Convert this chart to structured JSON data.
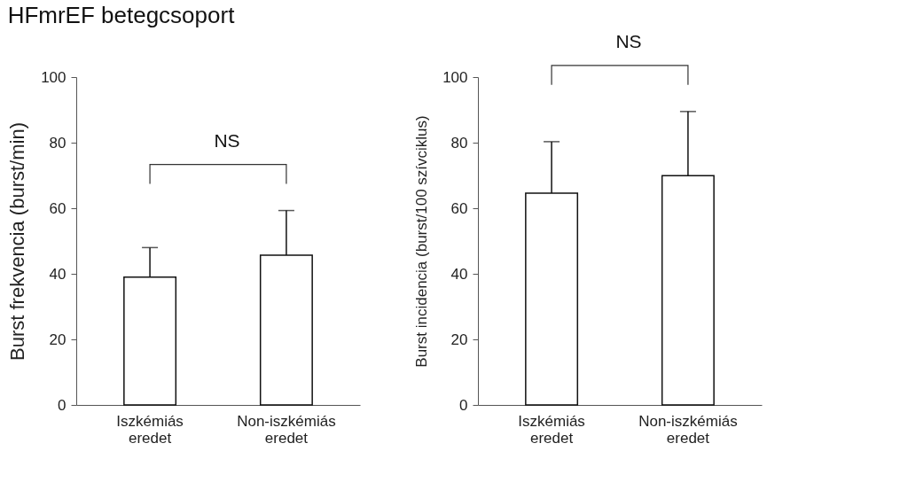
{
  "chart_data": [
    {
      "type": "bar",
      "title": "HFmrEF betegcsoport",
      "categories": [
        "Iszkémiás eredet",
        "Non-iszkémiás eredet"
      ],
      "ylabel": "Burst frekvencia (burst/min)",
      "ylim": [
        0,
        100
      ],
      "yticks": [
        0,
        20,
        40,
        60,
        80,
        100
      ],
      "grid": false,
      "annotations": [
        "NS"
      ],
      "series": [
        {
          "color": "#ffffff",
          "values": [
            39,
            45.7
          ],
          "errors": [
            [
              39,
              48
            ],
            [
              45.7,
              59.3
            ]
          ]
        }
      ]
    },
    {
      "type": "bar",
      "categories": [
        "Iszkémiás eredet",
        "Non-iszkémiás eredet"
      ],
      "ylabel": "Burst incidencia (burst/100 szívciklus)",
      "ylim": [
        0,
        100
      ],
      "yticks": [
        0,
        20,
        40,
        60,
        80,
        100
      ],
      "grid": false,
      "annotations": [
        "NS"
      ],
      "series": [
        {
          "color": "#ffffff",
          "values": [
            64.6,
            69.9
          ],
          "errors": [
            [
              64.6,
              80.3
            ],
            [
              69.9,
              89.5
            ]
          ]
        }
      ]
    }
  ]
}
